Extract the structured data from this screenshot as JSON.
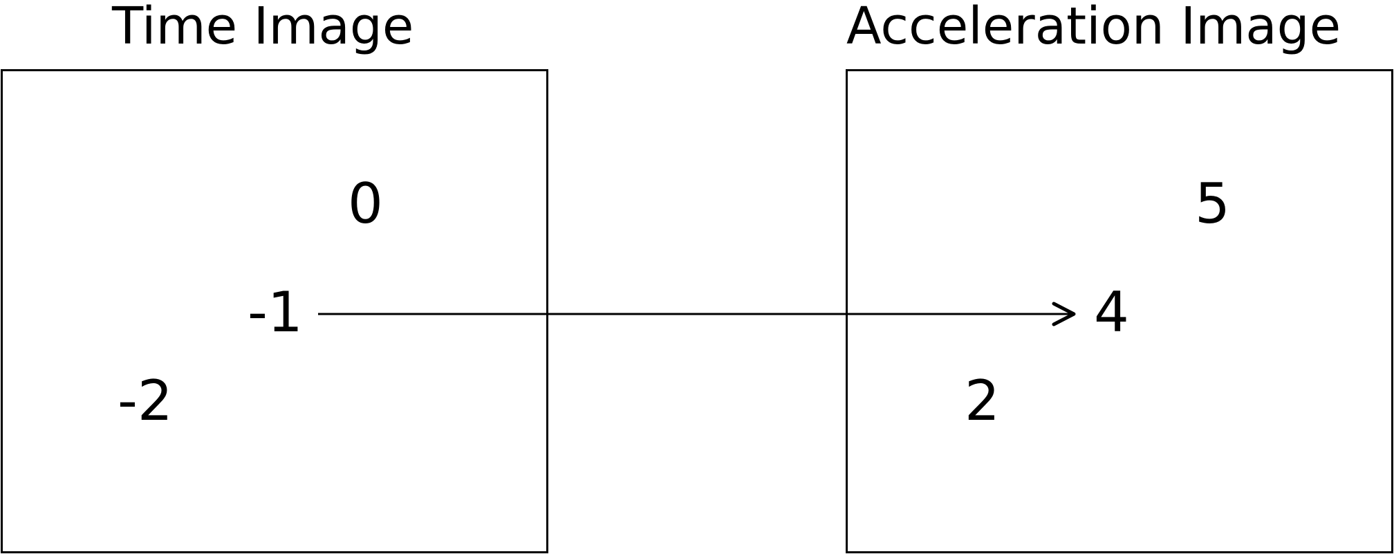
{
  "left_panel": {
    "title": "Time Image",
    "values": [
      "0",
      "-1",
      "-2"
    ]
  },
  "right_panel": {
    "title": "Acceleration Image",
    "values": [
      "5",
      "4",
      "2"
    ]
  },
  "mapping": {
    "from": "-1",
    "to": "4"
  }
}
